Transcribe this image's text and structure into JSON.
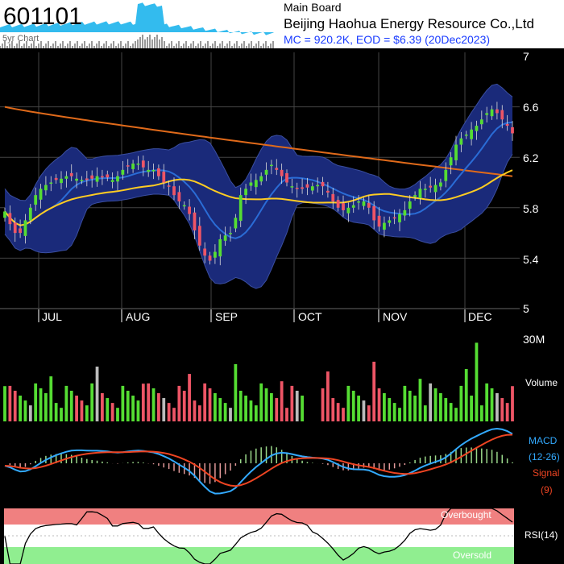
{
  "header": {
    "ticker": "601101",
    "thumb_label": "5yr Chart",
    "board": "Main Board",
    "company": "Beijing Haohua Energy Resource Co.,Ltd",
    "summary": "MC = 920.2K, EOD = $6.39 (20Dec2023)"
  },
  "colors": {
    "background": "#000000",
    "band_fill": "#1a2a7a",
    "up_candle": "#55dd33",
    "down_candle": "#ee5566",
    "ma_short": "#2a6cd6",
    "ma_mid": "#ffcc22",
    "ma_long": "#e06a1a",
    "macd_line": "#33aaff",
    "signal_line": "#ee4422",
    "overbought": "#f08080",
    "oversold": "#90ee90"
  },
  "chart_data": [
    {
      "type": "candlestick",
      "title": "",
      "y_ticks": [
        "7",
        "6.6",
        "6.2",
        "5.8",
        "5.4",
        "5"
      ],
      "ylim": [
        5,
        7
      ],
      "months": [
        "JUL",
        "AUG",
        "SEP",
        "OCT",
        "NOV",
        "DEC"
      ],
      "overlays": [
        "Bollinger Bands",
        "short moving average",
        "mid moving average",
        "long moving average"
      ],
      "close_approx": [
        5.77,
        5.67,
        5.6,
        5.6,
        5.7,
        5.8,
        5.9,
        5.95,
        5.98,
        6.0,
        6.02,
        6.03,
        6.05,
        6.05,
        6.03,
        6.02,
        6.02,
        6.03,
        6.05,
        6.04,
        6.04,
        6.02,
        6.05,
        6.1,
        6.13,
        6.15,
        6.15,
        6.12,
        6.1,
        6.1,
        6.05,
        6.0,
        5.97,
        5.9,
        5.85,
        5.82,
        5.75,
        5.62,
        5.5,
        5.42,
        5.38,
        5.45,
        5.55,
        5.58,
        5.6,
        5.72,
        5.9,
        5.95,
        6.0,
        6.02,
        6.05,
        6.1,
        6.14,
        6.1,
        6.05,
        6.0,
        5.97,
        5.95,
        5.95,
        5.96,
        5.97,
        5.98,
        5.97,
        5.92,
        5.85,
        5.8,
        5.78,
        5.8,
        5.82,
        5.85,
        5.85,
        5.8,
        5.7,
        5.65,
        5.68,
        5.7,
        5.72,
        5.75,
        5.78,
        5.85,
        5.9,
        5.95,
        5.95,
        5.96,
        5.98,
        6.0,
        6.1,
        6.2,
        6.3,
        6.35,
        6.38,
        6.42,
        6.45,
        6.5,
        6.55,
        6.58,
        6.55,
        6.5,
        6.45,
        6.39
      ],
      "last_close": 6.39
    },
    {
      "type": "bar",
      "title": "Volume",
      "y_ticks": [
        "30M"
      ],
      "ylim": [
        0,
        30
      ]
    },
    {
      "type": "line",
      "title": "MACD",
      "series": [
        {
          "name": "MACD"
        },
        {
          "name": "(12-26)"
        },
        {
          "name": "Signal"
        },
        {
          "name": "(9)"
        }
      ]
    },
    {
      "type": "line",
      "title": "RSI(14)",
      "zones": [
        "Overbought",
        "Oversold"
      ],
      "ylim": [
        0,
        100
      ]
    }
  ]
}
